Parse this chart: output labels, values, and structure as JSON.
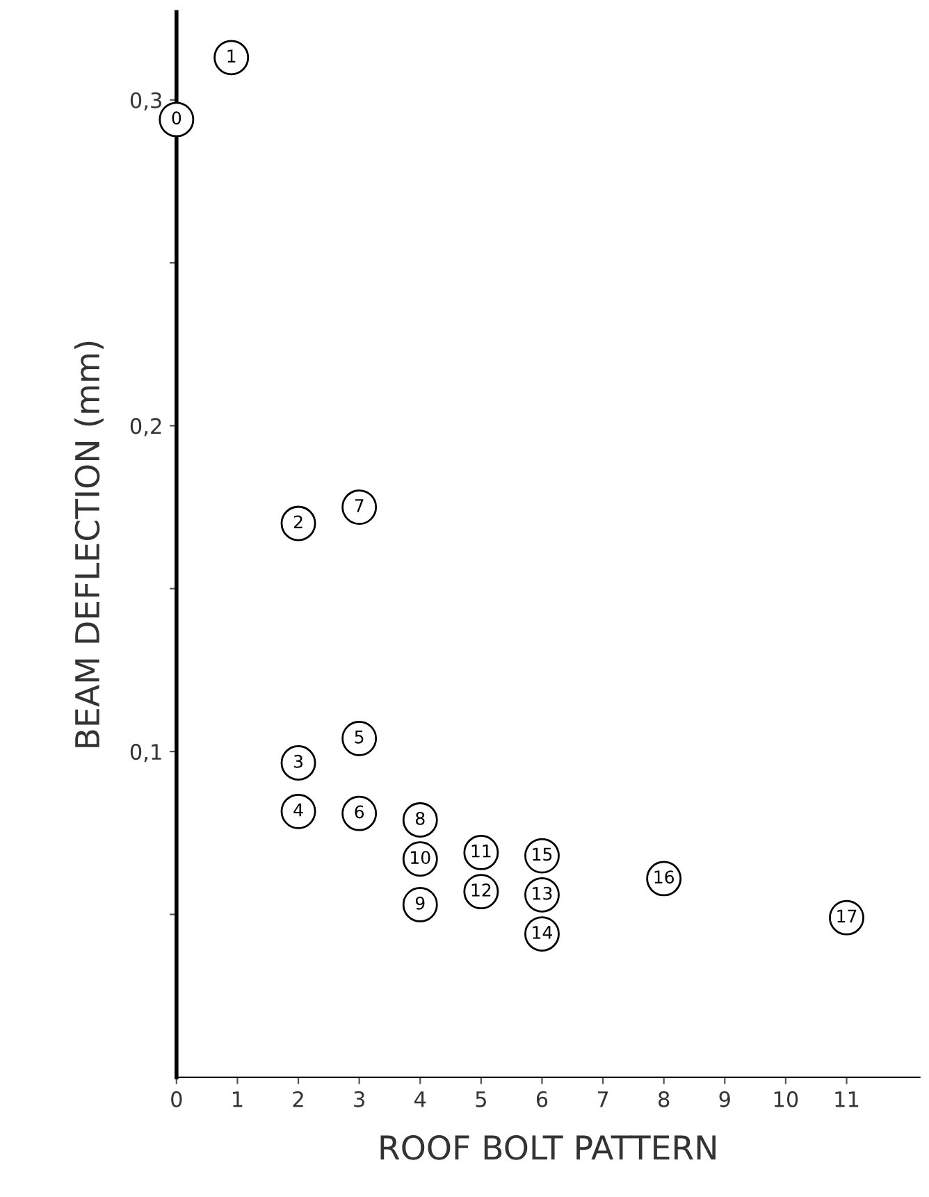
{
  "chart_data": {
    "type": "scatter",
    "xlabel": "ROOF BOLT PATTERN",
    "ylabel": "BEAM DEFLECTION (mm)",
    "xlim": [
      0,
      12.2
    ],
    "ylim": [
      0,
      0.327
    ],
    "xticks": [
      0,
      1,
      2,
      3,
      4,
      5,
      6,
      7,
      8,
      9,
      10,
      11
    ],
    "yticks": [
      {
        "value": 0.05,
        "label": null
      },
      {
        "value": 0.1,
        "label": "0,1"
      },
      {
        "value": 0.15,
        "label": null
      },
      {
        "value": 0.2,
        "label": "0,2"
      },
      {
        "value": 0.25,
        "label": null
      },
      {
        "value": 0.3,
        "label": "0,3"
      }
    ],
    "grid": false,
    "marker": "circle",
    "series": [
      {
        "color": "#000000",
        "x": [
          0,
          0.9,
          2,
          2,
          2,
          3,
          3,
          3,
          4,
          4,
          4,
          5,
          5,
          6,
          6,
          6,
          8,
          11
        ],
        "values": [
          0.294,
          0.313,
          0.17,
          0.0965,
          0.0816,
          0.104,
          0.081,
          0.175,
          0.079,
          0.053,
          0.067,
          0.069,
          0.057,
          0.056,
          0.044,
          0.068,
          0.061,
          0.049
        ]
      }
    ],
    "annotations": [
      {
        "text": "0",
        "x": 0,
        "y": 0.294
      },
      {
        "text": "1",
        "x": 0.9,
        "y": 0.313
      },
      {
        "text": "2",
        "x": 2,
        "y": 0.17
      },
      {
        "text": "3",
        "x": 2,
        "y": 0.0965
      },
      {
        "text": "4",
        "x": 2,
        "y": 0.0816
      },
      {
        "text": "5",
        "x": 3,
        "y": 0.104
      },
      {
        "text": "6",
        "x": 3,
        "y": 0.081
      },
      {
        "text": "7",
        "x": 3,
        "y": 0.175
      },
      {
        "text": "8",
        "x": 4,
        "y": 0.079
      },
      {
        "text": "9",
        "x": 4,
        "y": 0.053
      },
      {
        "text": "10",
        "x": 4,
        "y": 0.067
      },
      {
        "text": "11",
        "x": 5,
        "y": 0.069
      },
      {
        "text": "12",
        "x": 5,
        "y": 0.057
      },
      {
        "text": "13",
        "x": 6,
        "y": 0.056
      },
      {
        "text": "14",
        "x": 6,
        "y": 0.044
      },
      {
        "text": "15",
        "x": 6,
        "y": 0.068
      },
      {
        "text": "16",
        "x": 8,
        "y": 0.061
      },
      {
        "text": "17",
        "x": 11,
        "y": 0.049
      }
    ]
  }
}
